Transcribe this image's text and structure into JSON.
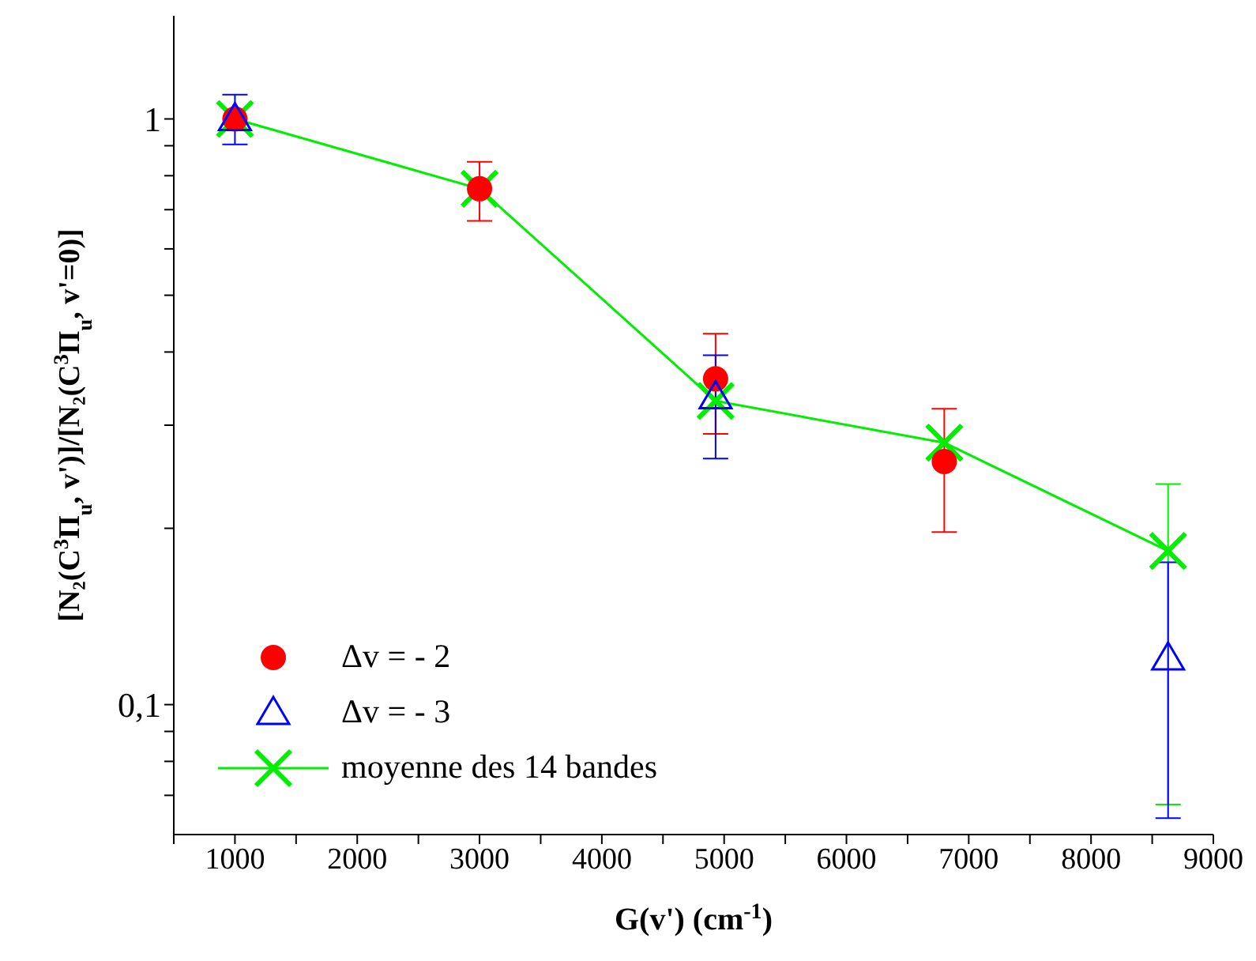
{
  "chart_data": {
    "type": "scatter",
    "xlabel": "G(v') (cm$^{-1}$)",
    "ylabel": "[N₂(C$^{3}$Π$_{u}$, v')]/[N₂(C$^{3}$Π$_{u}$, v'=0)]",
    "log": "y",
    "xlim": [
      500,
      9000
    ],
    "ylim": [
      0.06,
      1.5
    ],
    "xticks": [
      {
        "value": 500,
        "label": null
      },
      1000,
      {
        "value": 1500,
        "label": null
      },
      2000,
      {
        "value": 2500,
        "label": null
      },
      3000,
      {
        "value": 3500,
        "label": null
      },
      4000,
      {
        "value": 4500,
        "label": null
      },
      5000,
      {
        "value": 5500,
        "label": null
      },
      6000,
      {
        "value": 6500,
        "label": null
      },
      7000,
      {
        "value": 7500,
        "label": null
      },
      8000,
      {
        "value": 8500,
        "label": null
      },
      9000
    ],
    "yticks": [
      {
        "value": 0.07,
        "label": null
      },
      {
        "value": 0.08,
        "label": null
      },
      {
        "value": 0.09,
        "label": null
      },
      {
        "value": 0.1,
        "label": "0,1"
      },
      {
        "value": 0.2,
        "label": null
      },
      {
        "value": 0.3,
        "label": null
      },
      {
        "value": 0.4,
        "label": null
      },
      {
        "value": 0.5,
        "label": null
      },
      {
        "value": 0.6,
        "label": null
      },
      {
        "value": 0.7,
        "label": null
      },
      {
        "value": 0.8,
        "label": null
      },
      {
        "value": 0.9,
        "label": null
      },
      1
    ],
    "legend": "bottom left",
    "series": [
      {
        "name": "Δv = - 2",
        "marker": "circle",
        "color": "#ff0000",
        "x": [
          1000,
          3000,
          4930,
          6800
        ],
        "values": [
          1,
          0.76,
          0.36,
          0.26
        ],
        "errors": [
          null,
          [
            0.67,
            0.845
          ],
          [
            0.29,
            0.43
          ],
          [
            0.197,
            0.32
          ]
        ]
      },
      {
        "name": "Δv = - 3",
        "marker": "triangle",
        "color": "#0000ff",
        "x": [
          1000,
          4930,
          8630
        ],
        "values": [
          1,
          0.335,
          0.12
        ],
        "errors": [
          [
            0.905,
            1.1
          ],
          [
            0.263,
            0.395
          ],
          [
            0.064,
            0.175
          ]
        ]
      },
      {
        "name": "moyenne des 14 bandes",
        "type": "line",
        "marker": "cross",
        "color": "#00ee00",
        "x": [
          1000,
          3000,
          4930,
          6800,
          8630
        ],
        "values": [
          1,
          0.76,
          0.33,
          0.28,
          0.183
        ],
        "errors": [
          null,
          null,
          null,
          null,
          [
            0.0675,
            0.238
          ]
        ]
      }
    ]
  }
}
